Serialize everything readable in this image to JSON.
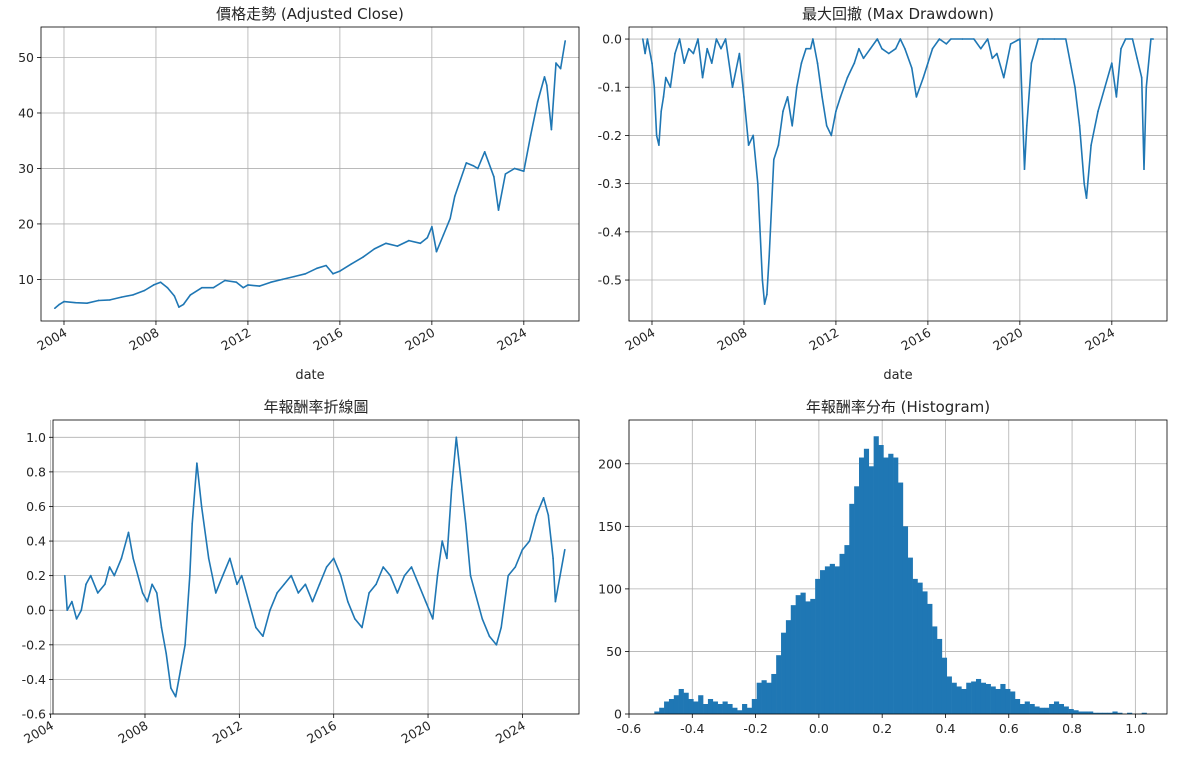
{
  "colors": {
    "series": "#1f77b4",
    "grid": "#b0b0b0"
  },
  "chart_data": [
    {
      "type": "line",
      "title": "價格走勢 (Adjusted Close)",
      "xlabel": "date",
      "ylabel": "",
      "xlim": [
        2003.0,
        2026.4
      ],
      "ylim": [
        2.5,
        55.5
      ],
      "xticks": [
        2004,
        2008,
        2012,
        2016,
        2020,
        2024
      ],
      "xtick_labels": [
        "2004",
        "2008",
        "2012",
        "2016",
        "2020",
        "2024"
      ],
      "xtick_rotation": 30,
      "yticks": [
        10,
        20,
        30,
        40,
        50
      ],
      "ytick_labels": [
        "10",
        "20",
        "30",
        "40",
        "50"
      ],
      "grid": true,
      "series": [
        {
          "x": [
            2003.6,
            2003.8,
            2004.0,
            2004.5,
            2005.0,
            2005.5,
            2006.0,
            2006.5,
            2007.0,
            2007.5,
            2007.9,
            2008.2,
            2008.5,
            2008.8,
            2009.0,
            2009.2,
            2009.5,
            2010.0,
            2010.5,
            2011.0,
            2011.5,
            2011.8,
            2012.0,
            2012.5,
            2013.0,
            2013.5,
            2014.0,
            2014.5,
            2015.0,
            2015.4,
            2015.7,
            2016.0,
            2016.5,
            2017.0,
            2017.5,
            2018.0,
            2018.5,
            2019.0,
            2019.5,
            2019.8,
            2020.0,
            2020.2,
            2020.5,
            2020.8,
            2021.0,
            2021.5,
            2021.8,
            2022.0,
            2022.3,
            2022.7,
            2022.9,
            2023.2,
            2023.6,
            2024.0,
            2024.3,
            2024.6,
            2024.9,
            2025.0,
            2025.2,
            2025.4,
            2025.6,
            2025.8
          ],
          "y": [
            4.8,
            5.5,
            6.0,
            5.8,
            5.7,
            6.2,
            6.3,
            6.8,
            7.2,
            8.0,
            9.0,
            9.5,
            8.5,
            7.0,
            5.0,
            5.5,
            7.2,
            8.5,
            8.5,
            9.8,
            9.5,
            8.5,
            9.0,
            8.8,
            9.5,
            10.0,
            10.5,
            11.0,
            12.0,
            12.5,
            11.0,
            11.5,
            12.8,
            14.0,
            15.5,
            16.5,
            16.0,
            17.0,
            16.5,
            17.5,
            19.5,
            15.0,
            18.0,
            21.0,
            25.0,
            31.0,
            30.5,
            30.0,
            33.0,
            28.5,
            22.5,
            29.0,
            30.0,
            29.5,
            36.0,
            42.0,
            46.5,
            45.0,
            37.0,
            49.0,
            48.0,
            53.0
          ]
        }
      ]
    },
    {
      "type": "line",
      "title": "最大回撤 (Max Drawdown)",
      "xlabel": "date",
      "ylabel": "",
      "xlim": [
        2003.0,
        2026.4
      ],
      "ylim": [
        -0.585,
        0.025
      ],
      "xticks": [
        2004,
        2008,
        2012,
        2016,
        2020,
        2024
      ],
      "xtick_labels": [
        "2004",
        "2008",
        "2012",
        "2016",
        "2020",
        "2024"
      ],
      "xtick_rotation": 30,
      "yticks": [
        0.0,
        -0.1,
        -0.2,
        -0.3,
        -0.4,
        -0.5
      ],
      "ytick_labels": [
        "0.0",
        "-0.1",
        "-0.2",
        "-0.3",
        "-0.4",
        "-0.5"
      ],
      "grid": true,
      "series": [
        {
          "x": [
            2003.6,
            2003.7,
            2003.8,
            2004.0,
            2004.1,
            2004.2,
            2004.3,
            2004.4,
            2004.5,
            2004.6,
            2004.8,
            2005.0,
            2005.2,
            2005.4,
            2005.6,
            2005.8,
            2006.0,
            2006.2,
            2006.4,
            2006.6,
            2006.8,
            2007.0,
            2007.2,
            2007.5,
            2007.8,
            2008.0,
            2008.2,
            2008.4,
            2008.6,
            2008.8,
            2008.9,
            2009.0,
            2009.1,
            2009.3,
            2009.5,
            2009.7,
            2009.9,
            2010.1,
            2010.3,
            2010.5,
            2010.7,
            2010.9,
            2011.0,
            2011.2,
            2011.4,
            2011.6,
            2011.8,
            2012.0,
            2012.2,
            2012.5,
            2012.8,
            2013.0,
            2013.2,
            2013.5,
            2013.8,
            2014.0,
            2014.3,
            2014.6,
            2014.8,
            2015.0,
            2015.3,
            2015.5,
            2015.8,
            2016.0,
            2016.2,
            2016.5,
            2016.8,
            2017.0,
            2017.5,
            2018.0,
            2018.3,
            2018.6,
            2018.8,
            2019.0,
            2019.3,
            2019.6,
            2020.0,
            2020.2,
            2020.3,
            2020.5,
            2020.8,
            2021.0,
            2021.5,
            2022.0,
            2022.2,
            2022.4,
            2022.6,
            2022.8,
            2022.9,
            2023.1,
            2023.4,
            2023.7,
            2024.0,
            2024.2,
            2024.4,
            2024.6,
            2024.9,
            2025.1,
            2025.3,
            2025.4,
            2025.5,
            2025.7,
            2025.8
          ],
          "y": [
            0.0,
            -0.03,
            0.0,
            -0.05,
            -0.1,
            -0.2,
            -0.22,
            -0.15,
            -0.12,
            -0.08,
            -0.1,
            -0.03,
            0.0,
            -0.05,
            -0.02,
            -0.03,
            0.0,
            -0.08,
            -0.02,
            -0.05,
            0.0,
            -0.02,
            0.0,
            -0.1,
            -0.03,
            -0.12,
            -0.22,
            -0.2,
            -0.3,
            -0.5,
            -0.55,
            -0.53,
            -0.45,
            -0.25,
            -0.22,
            -0.15,
            -0.12,
            -0.18,
            -0.1,
            -0.05,
            -0.02,
            -0.02,
            0.0,
            -0.05,
            -0.12,
            -0.18,
            -0.2,
            -0.15,
            -0.12,
            -0.08,
            -0.05,
            -0.02,
            -0.04,
            -0.02,
            0.0,
            -0.02,
            -0.03,
            -0.02,
            0.0,
            -0.02,
            -0.06,
            -0.12,
            -0.08,
            -0.05,
            -0.02,
            0.0,
            -0.01,
            0.0,
            0.0,
            0.0,
            -0.02,
            0.0,
            -0.04,
            -0.03,
            -0.08,
            -0.01,
            0.0,
            -0.27,
            -0.18,
            -0.05,
            0.0,
            0.0,
            0.0,
            0.0,
            -0.05,
            -0.1,
            -0.18,
            -0.3,
            -0.33,
            -0.22,
            -0.15,
            -0.1,
            -0.05,
            -0.12,
            -0.02,
            0.0,
            0.0,
            -0.04,
            -0.08,
            -0.27,
            -0.1,
            0.0,
            0.0
          ]
        }
      ]
    },
    {
      "type": "line",
      "title": "年報酬率折線圖",
      "xlabel": "",
      "ylabel": "",
      "xlim": [
        2004.1,
        2026.4
      ],
      "ylim": [
        -0.6,
        1.1
      ],
      "xticks": [
        2004,
        2008,
        2012,
        2016,
        2020,
        2024
      ],
      "xtick_labels": [
        "2004",
        "2008",
        "2012",
        "2016",
        "2020",
        "2024"
      ],
      "xtick_rotation": 30,
      "yticks": [
        -0.6,
        -0.4,
        -0.2,
        0.0,
        0.2,
        0.4,
        0.6,
        0.8,
        1.0
      ],
      "ytick_labels": [
        "-0.6",
        "-0.4",
        "-0.2",
        "0.0",
        "0.2",
        "0.4",
        "0.6",
        "0.8",
        "1.0"
      ],
      "grid": true,
      "series": [
        {
          "x": [
            2004.6,
            2004.7,
            2004.9,
            2005.1,
            2005.3,
            2005.5,
            2005.7,
            2006.0,
            2006.3,
            2006.5,
            2006.7,
            2007.0,
            2007.3,
            2007.5,
            2007.7,
            2007.9,
            2008.1,
            2008.3,
            2008.5,
            2008.7,
            2008.9,
            2009.1,
            2009.3,
            2009.5,
            2009.7,
            2009.9,
            2010.0,
            2010.2,
            2010.4,
            2010.7,
            2011.0,
            2011.3,
            2011.6,
            2011.9,
            2012.1,
            2012.4,
            2012.7,
            2013.0,
            2013.3,
            2013.6,
            2013.9,
            2014.2,
            2014.5,
            2014.8,
            2015.1,
            2015.4,
            2015.7,
            2016.0,
            2016.3,
            2016.6,
            2016.9,
            2017.2,
            2017.5,
            2017.8,
            2018.1,
            2018.4,
            2018.7,
            2019.0,
            2019.3,
            2019.6,
            2019.9,
            2020.2,
            2020.4,
            2020.6,
            2020.8,
            2021.0,
            2021.2,
            2021.4,
            2021.6,
            2021.8,
            2022.0,
            2022.3,
            2022.6,
            2022.9,
            2023.1,
            2023.4,
            2023.7,
            2024.0,
            2024.3,
            2024.6,
            2024.9,
            2025.1,
            2025.3,
            2025.4,
            2025.6,
            2025.8
          ],
          "y": [
            0.2,
            0.0,
            0.05,
            -0.05,
            0.0,
            0.15,
            0.2,
            0.1,
            0.15,
            0.25,
            0.2,
            0.3,
            0.45,
            0.3,
            0.2,
            0.1,
            0.05,
            0.15,
            0.1,
            -0.1,
            -0.25,
            -0.45,
            -0.5,
            -0.35,
            -0.2,
            0.2,
            0.5,
            0.85,
            0.6,
            0.3,
            0.1,
            0.2,
            0.3,
            0.15,
            0.2,
            0.05,
            -0.1,
            -0.15,
            0.0,
            0.1,
            0.15,
            0.2,
            0.1,
            0.15,
            0.05,
            0.15,
            0.25,
            0.3,
            0.2,
            0.05,
            -0.05,
            -0.1,
            0.1,
            0.15,
            0.25,
            0.2,
            0.1,
            0.2,
            0.25,
            0.15,
            0.05,
            -0.05,
            0.2,
            0.4,
            0.3,
            0.7,
            1.0,
            0.75,
            0.5,
            0.2,
            0.1,
            -0.05,
            -0.15,
            -0.2,
            -0.1,
            0.2,
            0.25,
            0.35,
            0.4,
            0.55,
            0.65,
            0.55,
            0.3,
            0.05,
            0.2,
            0.35
          ]
        }
      ]
    },
    {
      "type": "bar",
      "title": "年報酬率分布 (Histogram)",
      "xlabel": "",
      "ylabel": "",
      "xlim": [
        -0.6,
        1.1
      ],
      "ylim": [
        0,
        235
      ],
      "xticks": [
        -0.6,
        -0.4,
        -0.2,
        0.0,
        0.2,
        0.4,
        0.6,
        0.8,
        1.0
      ],
      "xtick_labels": [
        "-0.6",
        "-0.4",
        "-0.2",
        "0.0",
        "0.2",
        "0.4",
        "0.6",
        "0.8",
        "1.0"
      ],
      "yticks": [
        0,
        50,
        100,
        150,
        200
      ],
      "ytick_labels": [
        "0",
        "50",
        "100",
        "150",
        "200"
      ],
      "grid": true,
      "bin_start": -0.52,
      "bin_width": 0.0154,
      "values": [
        2,
        5,
        10,
        12,
        15,
        20,
        17,
        12,
        10,
        15,
        8,
        12,
        10,
        8,
        10,
        8,
        5,
        3,
        8,
        5,
        12,
        25,
        27,
        25,
        32,
        47,
        65,
        75,
        87,
        95,
        97,
        90,
        92,
        108,
        115,
        118,
        120,
        118,
        128,
        135,
        168,
        182,
        205,
        212,
        198,
        222,
        215,
        205,
        208,
        205,
        185,
        150,
        125,
        108,
        105,
        98,
        88,
        70,
        60,
        45,
        30,
        25,
        22,
        20,
        25,
        26,
        28,
        25,
        24,
        22,
        20,
        24,
        20,
        18,
        12,
        8,
        10,
        8,
        6,
        5,
        5,
        8,
        10,
        8,
        6,
        4,
        3,
        2,
        2,
        2,
        1,
        1,
        1,
        1,
        2,
        1,
        0,
        1,
        0,
        0,
        1
      ]
    }
  ]
}
